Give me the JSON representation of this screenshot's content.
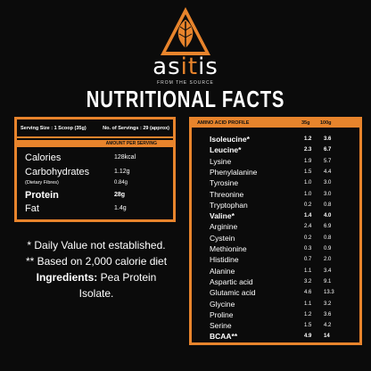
{
  "brand": {
    "name_start": "as",
    "name_mid": "it",
    "name_end": "is",
    "tagline": "FROM THE SOURCE",
    "logo_icon": "leaf-triangle-icon",
    "accent_color": "#e8842c"
  },
  "headline": "NUTRITIONAL FACTS",
  "nutrition_panel": {
    "serving_size": "Serving Size : 1 Scoop (35g)",
    "servings": "No. of Servings : 29 (approx)",
    "amount_header": "AMOUNT PER SERVING",
    "rows": [
      {
        "label": "Calories",
        "value": "128kcal"
      },
      {
        "label": "Carbohydrates",
        "value": "1.12g"
      },
      {
        "label": "(Dietary Fibres)",
        "value": "0.84g"
      },
      {
        "label": "Protein",
        "value": "28g"
      },
      {
        "label": "Fat",
        "value": "1.4g"
      }
    ]
  },
  "notes": {
    "line1": "* Daily Value not established.",
    "line2": "** Based on 2,000 calorie diet",
    "ingredients_label": "Ingredients:",
    "ingredients_value": "Pea Protein",
    "ingredients_value2": "Isolate."
  },
  "amino_panel": {
    "header": "AMINO ACID PROFILE",
    "col1": "35g",
    "col2": "100g",
    "rows": [
      {
        "name": "Isoleucine*",
        "v35": "1.2",
        "v100": "3.6",
        "bold": true
      },
      {
        "name": "Leucine*",
        "v35": "2.3",
        "v100": "6.7",
        "bold": true
      },
      {
        "name": "Lysine",
        "v35": "1.9",
        "v100": "5.7",
        "bold": false
      },
      {
        "name": "Phenylalanine",
        "v35": "1.5",
        "v100": "4.4",
        "bold": false
      },
      {
        "name": "Tyrosine",
        "v35": "1.0",
        "v100": "3.0",
        "bold": false
      },
      {
        "name": "Threonine",
        "v35": "1.0",
        "v100": "3.0",
        "bold": false
      },
      {
        "name": "Tryptophan",
        "v35": "0.2",
        "v100": "0.8",
        "bold": false
      },
      {
        "name": "Valine*",
        "v35": "1.4",
        "v100": "4.0",
        "bold": true
      },
      {
        "name": "Arginine",
        "v35": "2.4",
        "v100": "6.9",
        "bold": false
      },
      {
        "name": "Cystein",
        "v35": "0.2",
        "v100": "0.8",
        "bold": false
      },
      {
        "name": "Methionine",
        "v35": "0.3",
        "v100": "0.9",
        "bold": false
      },
      {
        "name": "Histidine",
        "v35": "0.7",
        "v100": "2.0",
        "bold": false
      },
      {
        "name": "Alanine",
        "v35": "1.1",
        "v100": "3.4",
        "bold": false
      },
      {
        "name": "Aspartic acid",
        "v35": "3.2",
        "v100": "9.1",
        "bold": false
      },
      {
        "name": "Glutamic acid",
        "v35": "4.6",
        "v100": "13.3",
        "bold": false
      },
      {
        "name": "Glycine",
        "v35": "1.1",
        "v100": "3.2",
        "bold": false
      },
      {
        "name": "Proline",
        "v35": "1.2",
        "v100": "3.6",
        "bold": false
      },
      {
        "name": "Serine",
        "v35": "1.5",
        "v100": "4.2",
        "bold": false
      },
      {
        "name": "BCAA**",
        "v35": "4.9",
        "v100": "14",
        "bold": true
      }
    ]
  }
}
